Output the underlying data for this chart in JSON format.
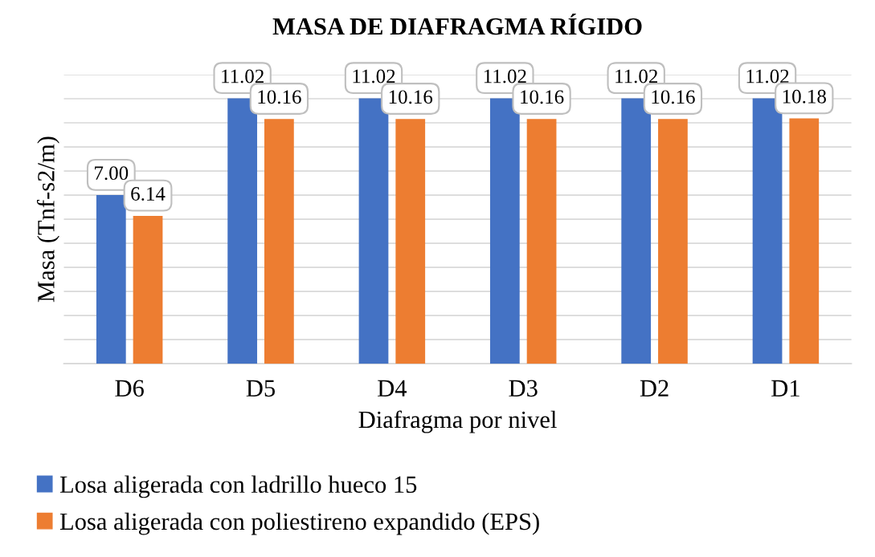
{
  "chart_data": {
    "type": "bar",
    "title": "MASA DE DIAFRAGMA RÍGIDO",
    "xlabel": "Diafragma por nivel",
    "ylabel": "Masa (Tnf-s2/m)",
    "categories": [
      "D6",
      "D5",
      "D4",
      "D3",
      "D2",
      "D1"
    ],
    "series": [
      {
        "name": "Losa aligerada con ladrillo hueco 15",
        "color": "#4472c4",
        "values": [
          7.0,
          11.02,
          11.02,
          11.02,
          11.02,
          11.02
        ],
        "value_labels": [
          "7.00",
          "11.02",
          "11.02",
          "11.02",
          "11.02",
          "11.02"
        ]
      },
      {
        "name": "Losa aligerada con poliestireno expandido (EPS)",
        "color": "#ed7d31",
        "values": [
          6.14,
          10.16,
          10.16,
          10.16,
          10.16,
          10.18
        ],
        "value_labels": [
          "6.14",
          "10.16",
          "10.16",
          "10.16",
          "10.16",
          "10.18"
        ]
      }
    ],
    "ylim": [
      0,
      12
    ],
    "yticks": [
      {
        "value": 0,
        "label": null
      },
      {
        "value": 1,
        "label": null
      },
      {
        "value": 2,
        "label": null
      },
      {
        "value": 3,
        "label": null
      },
      {
        "value": 4,
        "label": null
      },
      {
        "value": 5,
        "label": null
      },
      {
        "value": 6,
        "label": null
      },
      {
        "value": 7,
        "label": null
      },
      {
        "value": 8,
        "label": null
      },
      {
        "value": 9,
        "label": null
      },
      {
        "value": 10,
        "label": null
      },
      {
        "value": 11,
        "label": null
      },
      {
        "value": 12,
        "label": null
      }
    ],
    "tick_labels": "x",
    "grid": "y",
    "legend": "bottom"
  }
}
